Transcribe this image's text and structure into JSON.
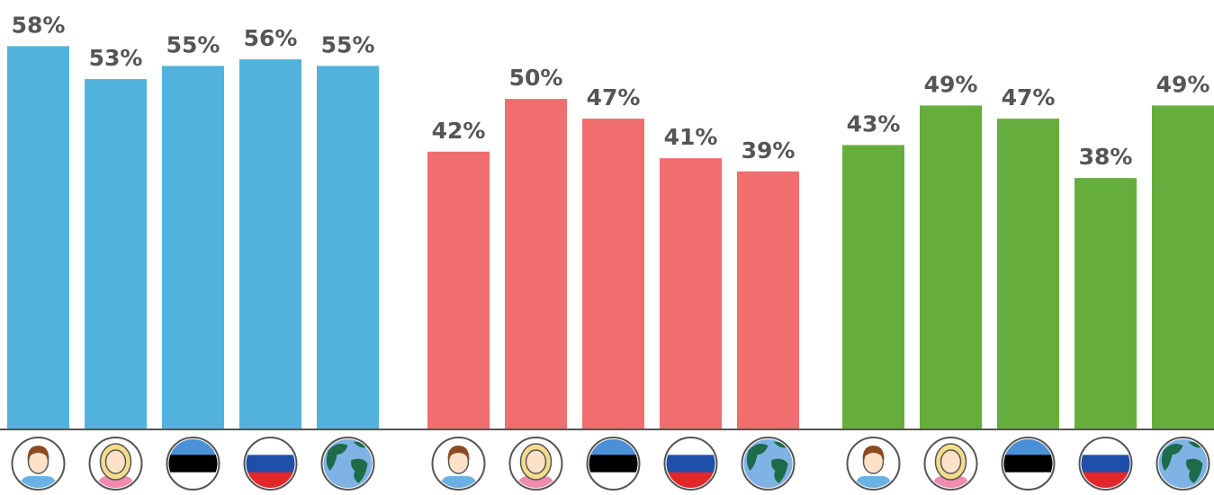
{
  "chart_data": [
    {
      "type": "bar",
      "categories": [
        null,
        null,
        null,
        null,
        null
      ],
      "values": [
        58,
        53,
        55,
        56,
        55
      ],
      "value_labels": [
        "58%",
        "53%",
        "55%",
        "56%",
        "55%"
      ],
      "color": "#51b3dc",
      "ylim": [
        0,
        65
      ]
    },
    {
      "type": "bar",
      "categories": [
        null,
        null,
        null,
        null,
        null
      ],
      "values": [
        42,
        50,
        47,
        41,
        39
      ],
      "value_labels": [
        "42%",
        "50%",
        "47%",
        "41%",
        "39%"
      ],
      "color": "#f06e6e",
      "ylim": [
        0,
        65
      ]
    },
    {
      "type": "bar",
      "categories": [
        null,
        null,
        null,
        null,
        null
      ],
      "values": [
        43,
        49,
        47,
        38,
        49
      ],
      "value_labels": [
        "43%",
        "49%",
        "47%",
        "38%",
        "49%"
      ],
      "color": "#65ae3e",
      "ylim": [
        0,
        65
      ]
    }
  ]
}
